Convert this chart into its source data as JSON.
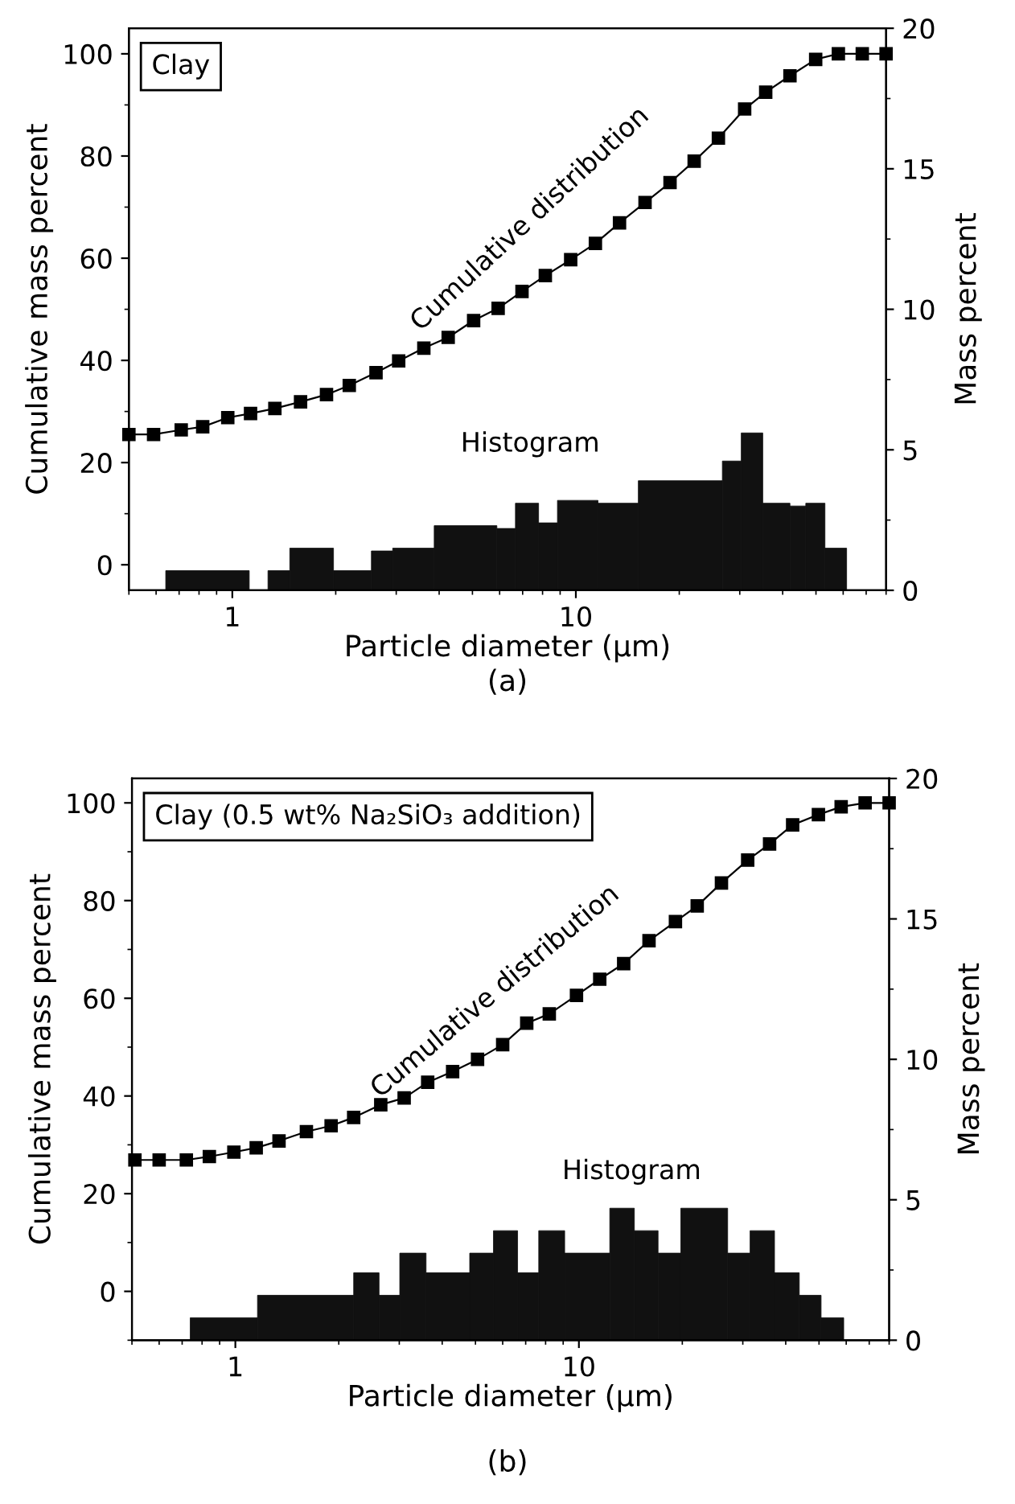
{
  "chart_data": [
    {
      "type": "line",
      "title": "Clay",
      "xlabel": "Particle diameter (μm)",
      "ylabel": "Cumulative mass percent",
      "y2label": "Mass percent",
      "log": "x",
      "xlim": [
        0.5,
        80
      ],
      "xticks": [
        1,
        10
      ],
      "ylim": [
        -5,
        105
      ],
      "yticks": [
        0,
        20,
        40,
        60,
        80,
        100
      ],
      "y2lim": [
        0,
        20
      ],
      "y2ticks": [
        0,
        5,
        10,
        15,
        20
      ],
      "series": [
        {
          "type": "histogram",
          "axis": "y2",
          "color": "#111111",
          "bins": [
            0.64,
            1.12,
            1.27,
            1.47,
            1.97,
            2.54,
            2.93,
            3.87,
            5.89,
            6.67,
            7.79,
            8.84,
            11.6,
            15.2,
            26.7,
            30.3,
            35.0,
            42.0,
            46.7,
            53.1,
            61.4
          ],
          "values": [
            0.7,
            0,
            0.7,
            1.5,
            0.7,
            1.4,
            1.5,
            2.3,
            2.2,
            3.1,
            2.4,
            3.2,
            3.1,
            3.9,
            4.6,
            5.6,
            3.1,
            3.0,
            3.1,
            1.5
          ]
        },
        {
          "color": "#000000",
          "marker": "square",
          "line_style": "solid",
          "x": [
            0.5,
            0.59,
            0.71,
            0.82,
            0.97,
            1.13,
            1.33,
            1.58,
            1.88,
            2.19,
            2.62,
            3.05,
            3.61,
            4.25,
            5.04,
            5.94,
            6.97,
            8.15,
            9.66,
            11.4,
            13.4,
            15.9,
            18.8,
            22.1,
            26.0,
            31.0,
            35.7,
            42.0,
            49.9,
            58.1,
            68.2,
            80
          ],
          "values": [
            25.5,
            25.5,
            26.4,
            27.0,
            28.8,
            29.6,
            30.6,
            31.9,
            33.3,
            35.1,
            37.6,
            39.9,
            42.4,
            44.5,
            47.8,
            50.2,
            53.5,
            56.6,
            59.7,
            62.9,
            66.9,
            70.9,
            74.8,
            79.0,
            83.5,
            89.2,
            92.5,
            95.7,
            98.9,
            100,
            100,
            100
          ]
        }
      ],
      "annotations": [
        "Cumulative distribution",
        "Histogram",
        "(a)"
      ]
    },
    {
      "type": "line",
      "title": "Clay (0.5 wt% Na₂SiO₃ addition)",
      "xlabel": "Particle diameter (μm)",
      "ylabel": "Cumulative mass percent",
      "y2label": "Mass percent",
      "log": "x",
      "xlim": [
        0.5,
        80
      ],
      "xticks": [
        1,
        10
      ],
      "ylim": [
        -10,
        105
      ],
      "yticks": [
        0,
        20,
        40,
        60,
        80,
        100
      ],
      "y2lim": [
        0,
        20
      ],
      "y2ticks": [
        0,
        5,
        10,
        15,
        20
      ],
      "series": [
        {
          "type": "histogram",
          "axis": "y2",
          "color": "#111111",
          "bins": [
            0.739,
            1.16,
            2.21,
            2.62,
            3.01,
            3.59,
            4.81,
            5.64,
            6.63,
            7.64,
            9.09,
            12.3,
            14.5,
            17.0,
            19.8,
            27.1,
            31.5,
            37.1,
            43.8,
            50.7,
            59.0
          ],
          "values": [
            0.8,
            1.6,
            2.4,
            1.6,
            3.1,
            2.4,
            3.1,
            3.9,
            2.4,
            3.9,
            3.1,
            4.7,
            3.9,
            3.1,
            4.7,
            3.1,
            3.9,
            2.4,
            1.6,
            0.8
          ]
        },
        {
          "color": "#000000",
          "marker": "square",
          "line_style": "solid",
          "x": [
            0.51,
            0.6,
            0.72,
            0.84,
            0.99,
            1.15,
            1.34,
            1.61,
            1.9,
            2.21,
            2.65,
            3.1,
            3.63,
            4.29,
            5.07,
            6.0,
            7.05,
            8.2,
            9.84,
            11.5,
            13.5,
            16.0,
            19.1,
            22.1,
            26.0,
            31.0,
            35.9,
            41.9,
            49.8,
            58.0,
            68.1,
            80
          ],
          "values": [
            26.9,
            26.9,
            26.9,
            27.6,
            28.5,
            29.4,
            30.8,
            32.7,
            33.9,
            35.6,
            38.2,
            39.6,
            42.8,
            45.0,
            47.5,
            50.5,
            54.9,
            56.8,
            60.6,
            63.9,
            67.1,
            71.8,
            75.7,
            78.9,
            83.6,
            88.3,
            91.6,
            95.5,
            97.6,
            99.2,
            100,
            100
          ]
        }
      ],
      "annotations": [
        "Cumulative distribution",
        "Histogram",
        "(b)"
      ]
    }
  ]
}
